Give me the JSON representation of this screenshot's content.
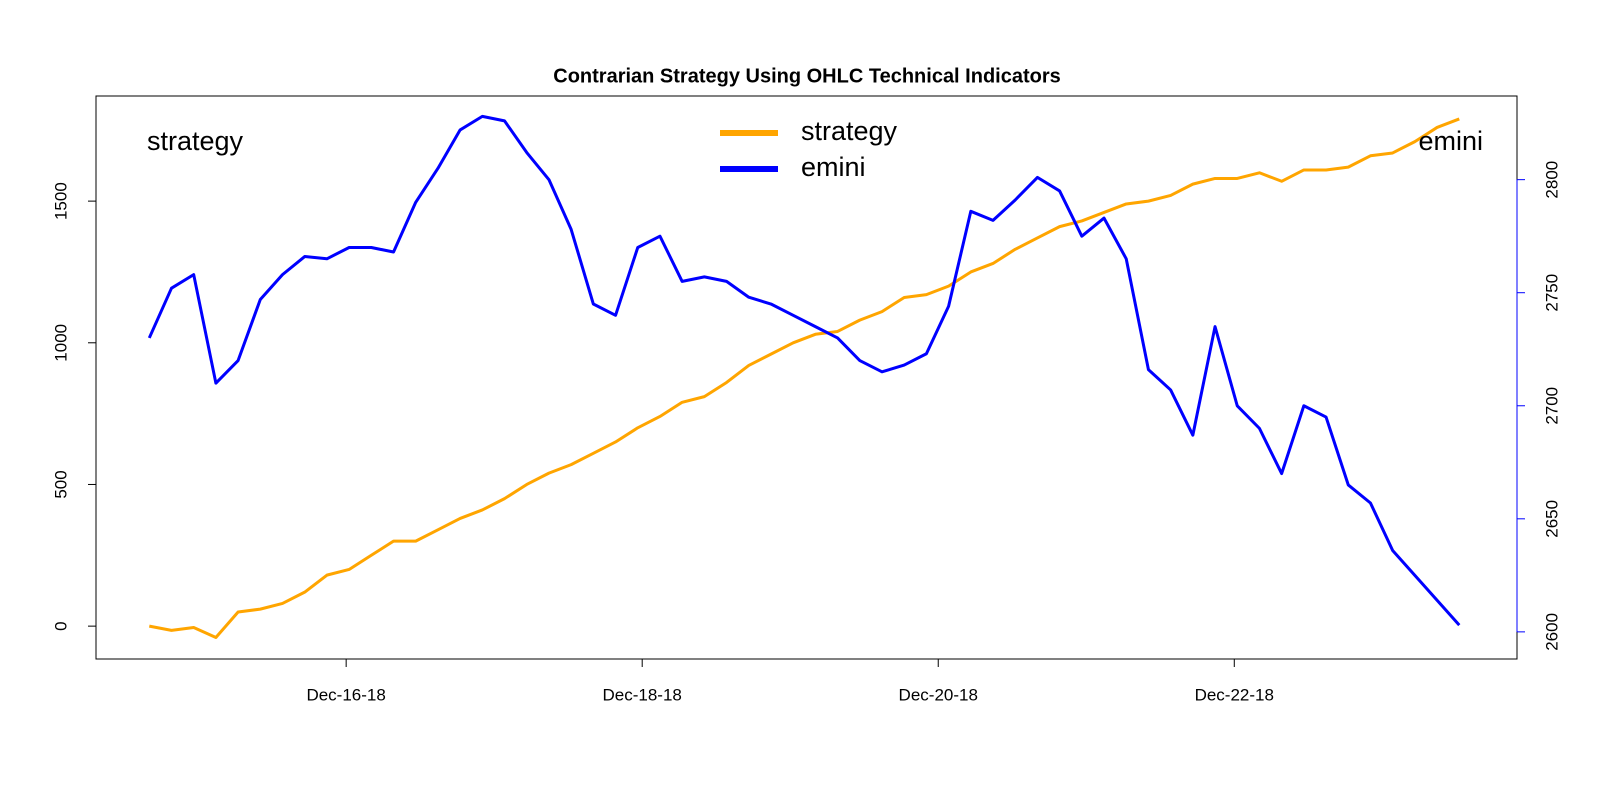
{
  "chart_data": {
    "type": "line",
    "title": "Contrarian Strategy Using OHLC Technical Indicators",
    "x": [
      14.67,
      14.82,
      14.97,
      15.12,
      15.27,
      15.42,
      15.57,
      15.72,
      15.87,
      16.02,
      16.17,
      16.32,
      16.47,
      16.62,
      16.77,
      16.92,
      17.07,
      17.22,
      17.37,
      17.52,
      17.67,
      17.82,
      17.97,
      18.12,
      18.27,
      18.42,
      18.57,
      18.72,
      18.87,
      19.02,
      19.17,
      19.32,
      19.47,
      19.62,
      19.77,
      19.92,
      20.07,
      20.22,
      20.37,
      20.52,
      20.67,
      20.82,
      20.97,
      21.12,
      21.27,
      21.42,
      21.57,
      21.72,
      21.87,
      22.02,
      22.17,
      22.32,
      22.47,
      22.62,
      22.77,
      22.92,
      23.07,
      23.22,
      23.37,
      23.52
    ],
    "series": [
      {
        "name": "strategy",
        "color": "#ffa500",
        "values": [
          0,
          -15,
          -5,
          -40,
          50,
          60,
          80,
          120,
          180,
          200,
          250,
          300,
          300,
          340,
          380,
          410,
          450,
          500,
          540,
          570,
          610,
          650,
          700,
          740,
          790,
          810,
          860,
          920,
          960,
          1000,
          1030,
          1040,
          1080,
          1110,
          1160,
          1170,
          1200,
          1250,
          1280,
          1330,
          1370,
          1410,
          1430,
          1460,
          1490,
          1500,
          1520,
          1560,
          1580,
          1580,
          1600,
          1570,
          1610,
          1610,
          1620,
          1660,
          1670,
          1710,
          1760,
          1790
        ]
      },
      {
        "name": "emini",
        "color": "#0000ff",
        "axis": "y2",
        "values": [
          2730,
          2752,
          2758,
          2710,
          2720,
          2747,
          2758,
          2766,
          2765,
          2770,
          2770,
          2768,
          2790,
          2805,
          2822,
          2828,
          2826,
          2812,
          2800,
          2778,
          2745,
          2740,
          2770,
          2775,
          2755,
          2757,
          2755,
          2748,
          2745,
          2740,
          2735,
          2730,
          2720,
          2715,
          2718,
          2723,
          2744,
          2786,
          2782,
          2791,
          2801,
          2795,
          2775,
          2783,
          2765,
          2716,
          2707,
          2687,
          2735,
          2700,
          2690,
          2670,
          2700,
          2695,
          2665,
          2657,
          2636,
          2625,
          2614,
          2603
        ]
      }
    ],
    "xlim": [
      14.31,
      23.91
    ],
    "xticks": [
      {
        "value": 16,
        "label": "Dec-16-18"
      },
      {
        "value": 18,
        "label": "Dec-18-18"
      },
      {
        "value": 20,
        "label": "Dec-20-18"
      },
      {
        "value": 22,
        "label": "Dec-22-18"
      }
    ],
    "ylim": [
      -116,
      1871
    ],
    "yticks": [
      0,
      500,
      1000,
      1500
    ],
    "y2lim": [
      2588,
      2837
    ],
    "y2ticks": [
      2600,
      2650,
      2700,
      2750,
      2800
    ],
    "legend": "top"
  }
}
